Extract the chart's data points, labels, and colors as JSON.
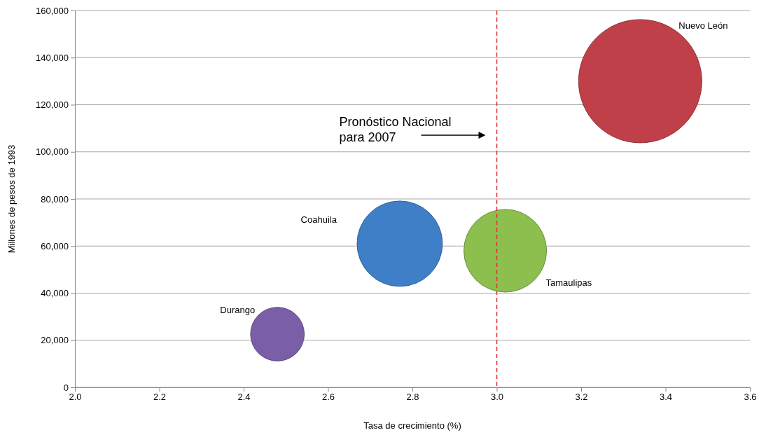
{
  "chart_data": {
    "type": "bubble",
    "xlabel": "Tasa de crecimiento (%)",
    "ylabel": "Millones de pesos de 1993",
    "xlim": [
      2.0,
      3.6
    ],
    "ylim": [
      0,
      160000
    ],
    "xticks": [
      {
        "value": 2.0,
        "label": "2.0"
      },
      {
        "value": 2.2,
        "label": "2.2"
      },
      {
        "value": 2.4,
        "label": "2.4"
      },
      {
        "value": 2.6,
        "label": "2.6"
      },
      {
        "value": 2.8,
        "label": "2.8"
      },
      {
        "value": 3.0,
        "label": "3.0"
      },
      {
        "value": 3.2,
        "label": "3.2"
      },
      {
        "value": 3.4,
        "label": "3.4"
      },
      {
        "value": 3.6,
        "label": "3.6"
      }
    ],
    "yticks": [
      {
        "value": 0,
        "label": "0"
      },
      {
        "value": 20000,
        "label": "20,000"
      },
      {
        "value": 40000,
        "label": "40,000"
      },
      {
        "value": 60000,
        "label": "60,000"
      },
      {
        "value": 80000,
        "label": "80,000"
      },
      {
        "value": 100000,
        "label": "100,000"
      },
      {
        "value": 120000,
        "label": "120,000"
      },
      {
        "value": 140000,
        "label": "140,000"
      },
      {
        "value": 160000,
        "label": "160,000"
      }
    ],
    "grid": "y",
    "annotations": [
      "Pronóstico Nacional para 2007"
    ],
    "series": [
      {
        "name": "Nuevo León",
        "color": "#c0404a",
        "x": [
          3.34
        ],
        "values": [
          130000
        ],
        "sizes": [
          1
        ]
      },
      {
        "name": "Coahuila",
        "color": "#3f7fc8",
        "x": [
          2.77
        ],
        "values": [
          61000
        ],
        "sizes": [
          0.48
        ]
      },
      {
        "name": "Tamaulipas",
        "color": "#8cbf4e",
        "x": [
          3.02
        ],
        "values": [
          58000
        ],
        "sizes": [
          0.45
        ]
      },
      {
        "name": "Durango",
        "color": "#7a5ea8",
        "x": [
          2.48
        ],
        "values": [
          22600
        ],
        "sizes": [
          0.19
        ]
      }
    ],
    "ref_lines": [
      {
        "axis": "x",
        "value": 3.0,
        "color": "#e03030",
        "line_style": "dashed"
      }
    ]
  }
}
